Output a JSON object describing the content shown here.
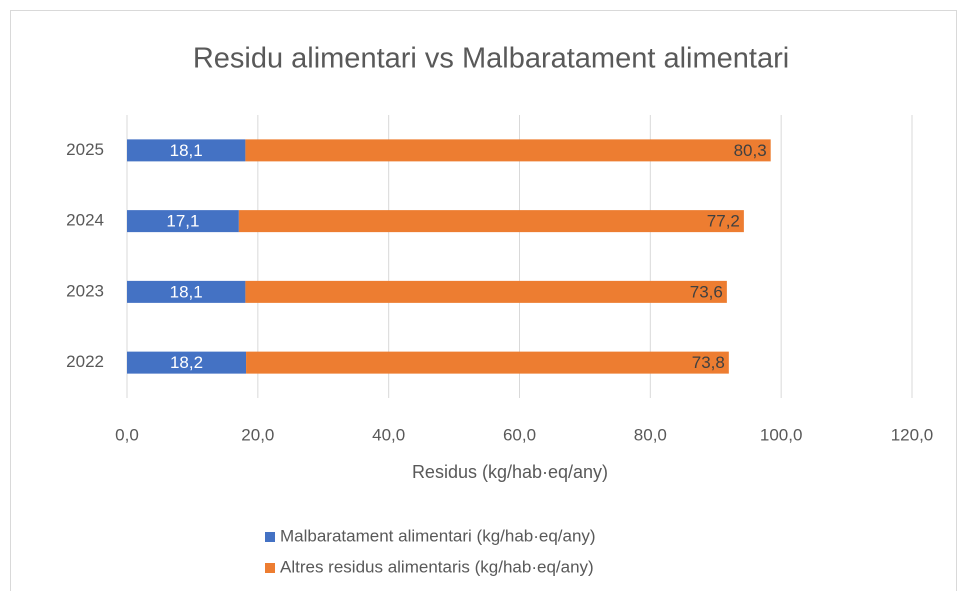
{
  "chart_data": {
    "type": "stacked_barh",
    "title": "Residu alimentari vs Malbaratament alimentari",
    "x_label": "Residus (kg/hab·eq/any)",
    "categories": [
      "2022",
      "2023",
      "2024",
      "2025"
    ],
    "series": [
      {
        "name": "Malbaratament alimentari (kg/hab·eq/any)",
        "color": "#4472c4",
        "values": [
          18.2,
          18.1,
          17.1,
          18.1
        ],
        "value_labels": [
          "18,2",
          "18,1",
          "17,1",
          "18,1"
        ]
      },
      {
        "name": "Altres residus alimentaris (kg/hab·eq/any)",
        "color": "#ed7d31",
        "values": [
          73.8,
          73.6,
          77.2,
          80.3
        ],
        "value_labels": [
          "73,8",
          "73,6",
          "77,2",
          "80,3"
        ]
      }
    ],
    "xlim": [
      0,
      120
    ],
    "xticks": [
      {
        "value": 0,
        "label": "0,0"
      },
      {
        "value": 20,
        "label": "20,0"
      },
      {
        "value": 40,
        "label": "40,0"
      },
      {
        "value": 60,
        "label": "60,0"
      },
      {
        "value": 80,
        "label": "80,0"
      },
      {
        "value": 100,
        "label": "100,0"
      },
      {
        "value": 120,
        "label": "120,0"
      }
    ],
    "grid": true,
    "legend": "bottom"
  }
}
